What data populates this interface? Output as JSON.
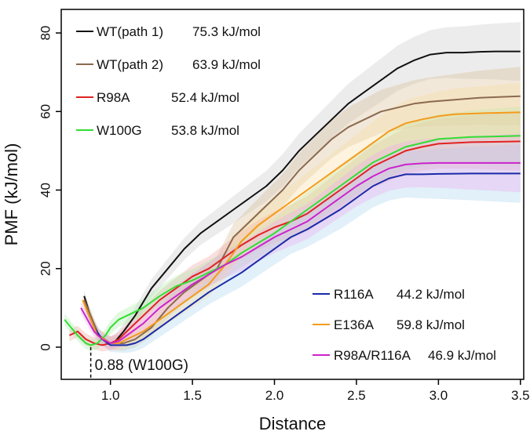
{
  "chart_data": {
    "type": "line",
    "title": "",
    "xlabel": "Distance",
    "ylabel": "PMF (kJ/mol)",
    "xlim": [
      0.7,
      3.52
    ],
    "ylim": [
      -8.2,
      86
    ],
    "xticks": [
      {
        "value": 1.0,
        "label": "1.0"
      },
      {
        "value": 1.5,
        "label": "1.5"
      },
      {
        "value": 2.0,
        "label": "2.0"
      },
      {
        "value": 2.5,
        "label": "2.5"
      },
      {
        "value": 3.0,
        "label": "3.0"
      },
      {
        "value": 3.5,
        "label": "3.5"
      }
    ],
    "yticks": [
      {
        "value": 0,
        "label": "0"
      },
      {
        "value": 20,
        "label": "20"
      },
      {
        "value": 40,
        "label": "40"
      },
      {
        "value": 60,
        "label": "60"
      },
      {
        "value": 80,
        "label": "80"
      }
    ],
    "annotation": {
      "x": 0.88,
      "text": "0.88 (W100G)"
    },
    "series": [
      {
        "name": "WT(path 1)",
        "energy": "75.3 kJ/mol",
        "color": "#111111",
        "band_color": "#c8c8c8",
        "legend_group": "top",
        "x": [
          0.84,
          0.87,
          0.9,
          0.95,
          1.0,
          1.03,
          1.08,
          1.15,
          1.25,
          1.35,
          1.45,
          1.55,
          1.65,
          1.75,
          1.85,
          1.95,
          2.05,
          2.15,
          2.25,
          2.35,
          2.45,
          2.55,
          2.65,
          2.75,
          2.85,
          2.95,
          3.05,
          3.15,
          3.25,
          3.35,
          3.5
        ],
        "y": [
          13,
          9,
          5,
          2,
          1,
          1.5,
          4,
          8,
          15,
          20,
          25,
          29,
          32,
          35,
          38,
          41,
          45,
          50,
          54,
          58,
          62,
          65,
          68,
          71,
          73,
          74.5,
          75,
          75,
          75.2,
          75.3,
          75.3
        ]
      },
      {
        "name": "WT(path 2)",
        "energy": "63.9 kJ/mol",
        "color": "#8b6a4e",
        "band_color": "#d9be96",
        "legend_group": "top",
        "x": [
          0.84,
          0.88,
          0.93,
          1.0,
          1.08,
          1.15,
          1.25,
          1.35,
          1.45,
          1.55,
          1.65,
          1.7,
          1.75,
          1.8,
          1.85,
          1.95,
          2.05,
          2.15,
          2.25,
          2.35,
          2.45,
          2.55,
          2.65,
          2.75,
          2.85,
          2.95,
          3.1,
          3.25,
          3.5
        ],
        "y": [
          12,
          8,
          3,
          1,
          1,
          2,
          5,
          10,
          14,
          17,
          20,
          24,
          28,
          30,
          32,
          36,
          40,
          45,
          49,
          53,
          56,
          58,
          60,
          61,
          62,
          62.5,
          63,
          63.5,
          63.9
        ]
      },
      {
        "name": "R98A",
        "energy": "52.4 kJ/mol",
        "color": "#e02222",
        "band_color": "#f4a0a0",
        "legend_group": "top",
        "x": [
          0.75,
          0.8,
          0.85,
          0.9,
          0.95,
          1.0,
          1.05,
          1.1,
          1.2,
          1.3,
          1.4,
          1.5,
          1.6,
          1.7,
          1.8,
          1.9,
          2.0,
          2.1,
          2.2,
          2.3,
          2.4,
          2.5,
          2.6,
          2.7,
          2.8,
          2.9,
          3.0,
          3.2,
          3.5
        ],
        "y": [
          3,
          4,
          2,
          1,
          0.5,
          1,
          2,
          4,
          8,
          12,
          15,
          18,
          20,
          23,
          26,
          28.5,
          30.5,
          32,
          34,
          37,
          40,
          43,
          46,
          48,
          50,
          51,
          51.8,
          52.2,
          52.4
        ]
      },
      {
        "name": "W100G",
        "energy": "53.8 kJ/mol",
        "color": "#33dd33",
        "band_color": "#a6eea6",
        "legend_group": "top",
        "x": [
          0.72,
          0.76,
          0.8,
          0.85,
          0.88,
          0.92,
          0.97,
          1.0,
          1.05,
          1.1,
          1.2,
          1.3,
          1.4,
          1.5,
          1.6,
          1.7,
          1.8,
          1.9,
          2.0,
          2.1,
          2.2,
          2.3,
          2.4,
          2.5,
          2.6,
          2.7,
          2.8,
          2.9,
          3.0,
          3.2,
          3.5
        ],
        "y": [
          7,
          5,
          3,
          1,
          0.5,
          1,
          3,
          5,
          7,
          8,
          10,
          13,
          15.5,
          17,
          19,
          21,
          24,
          26.5,
          29,
          32,
          35,
          38,
          41,
          44,
          47,
          49,
          51,
          52,
          53,
          53.5,
          53.8
        ]
      },
      {
        "name": "R116A",
        "energy": "44.2 kJ/mol",
        "color": "#1a2aa8",
        "band_color": "#a8d4ee",
        "legend_group": "bottom",
        "x": [
          0.85,
          0.9,
          0.95,
          1.0,
          1.05,
          1.1,
          1.15,
          1.2,
          1.3,
          1.4,
          1.5,
          1.6,
          1.7,
          1.8,
          1.9,
          2.0,
          2.1,
          2.2,
          2.3,
          2.4,
          2.5,
          2.6,
          2.7,
          2.8,
          2.9,
          3.0,
          3.2,
          3.5
        ],
        "y": [
          10,
          5,
          2,
          0.5,
          0.5,
          0.5,
          1,
          2,
          5,
          8,
          11,
          14,
          16.5,
          19,
          22,
          25,
          28,
          30,
          32.5,
          35,
          38,
          41,
          43,
          44,
          44,
          44.1,
          44.2,
          44.2
        ]
      },
      {
        "name": "E136A",
        "energy": "59.8 kJ/mol",
        "color": "#f59a1a",
        "band_color": "#f8dca0",
        "legend_group": "bottom",
        "x": [
          0.83,
          0.87,
          0.92,
          1.0,
          1.05,
          1.1,
          1.2,
          1.3,
          1.4,
          1.5,
          1.6,
          1.7,
          1.75,
          1.8,
          1.9,
          2.0,
          2.1,
          2.2,
          2.3,
          2.4,
          2.5,
          2.6,
          2.7,
          2.8,
          2.9,
          3.0,
          3.1,
          3.3,
          3.5
        ],
        "y": [
          12,
          8,
          3,
          1,
          1,
          2,
          4,
          7,
          10,
          13,
          16,
          21,
          24,
          27,
          31,
          34,
          37,
          40,
          43,
          46,
          49,
          52,
          55,
          57,
          58,
          58.8,
          59.3,
          59.6,
          59.8
        ]
      },
      {
        "name": "R98A/R116A",
        "energy": "46.9 kJ/mol",
        "color": "#cc22cc",
        "band_color": "#eeaaee",
        "legend_group": "bottom",
        "x": [
          0.82,
          0.86,
          0.9,
          0.95,
          1.0,
          1.05,
          1.1,
          1.2,
          1.3,
          1.4,
          1.5,
          1.6,
          1.7,
          1.8,
          1.9,
          2.0,
          2.1,
          2.2,
          2.3,
          2.4,
          2.5,
          2.6,
          2.7,
          2.8,
          2.9,
          3.0,
          3.2,
          3.5
        ],
        "y": [
          10,
          7,
          4,
          2,
          1,
          1.5,
          3,
          6,
          10,
          13,
          16,
          18.5,
          21,
          23,
          25.5,
          28,
          30,
          32,
          35,
          38,
          41,
          43.5,
          45.5,
          46.5,
          46.8,
          46.9,
          46.9,
          46.9
        ]
      }
    ]
  }
}
